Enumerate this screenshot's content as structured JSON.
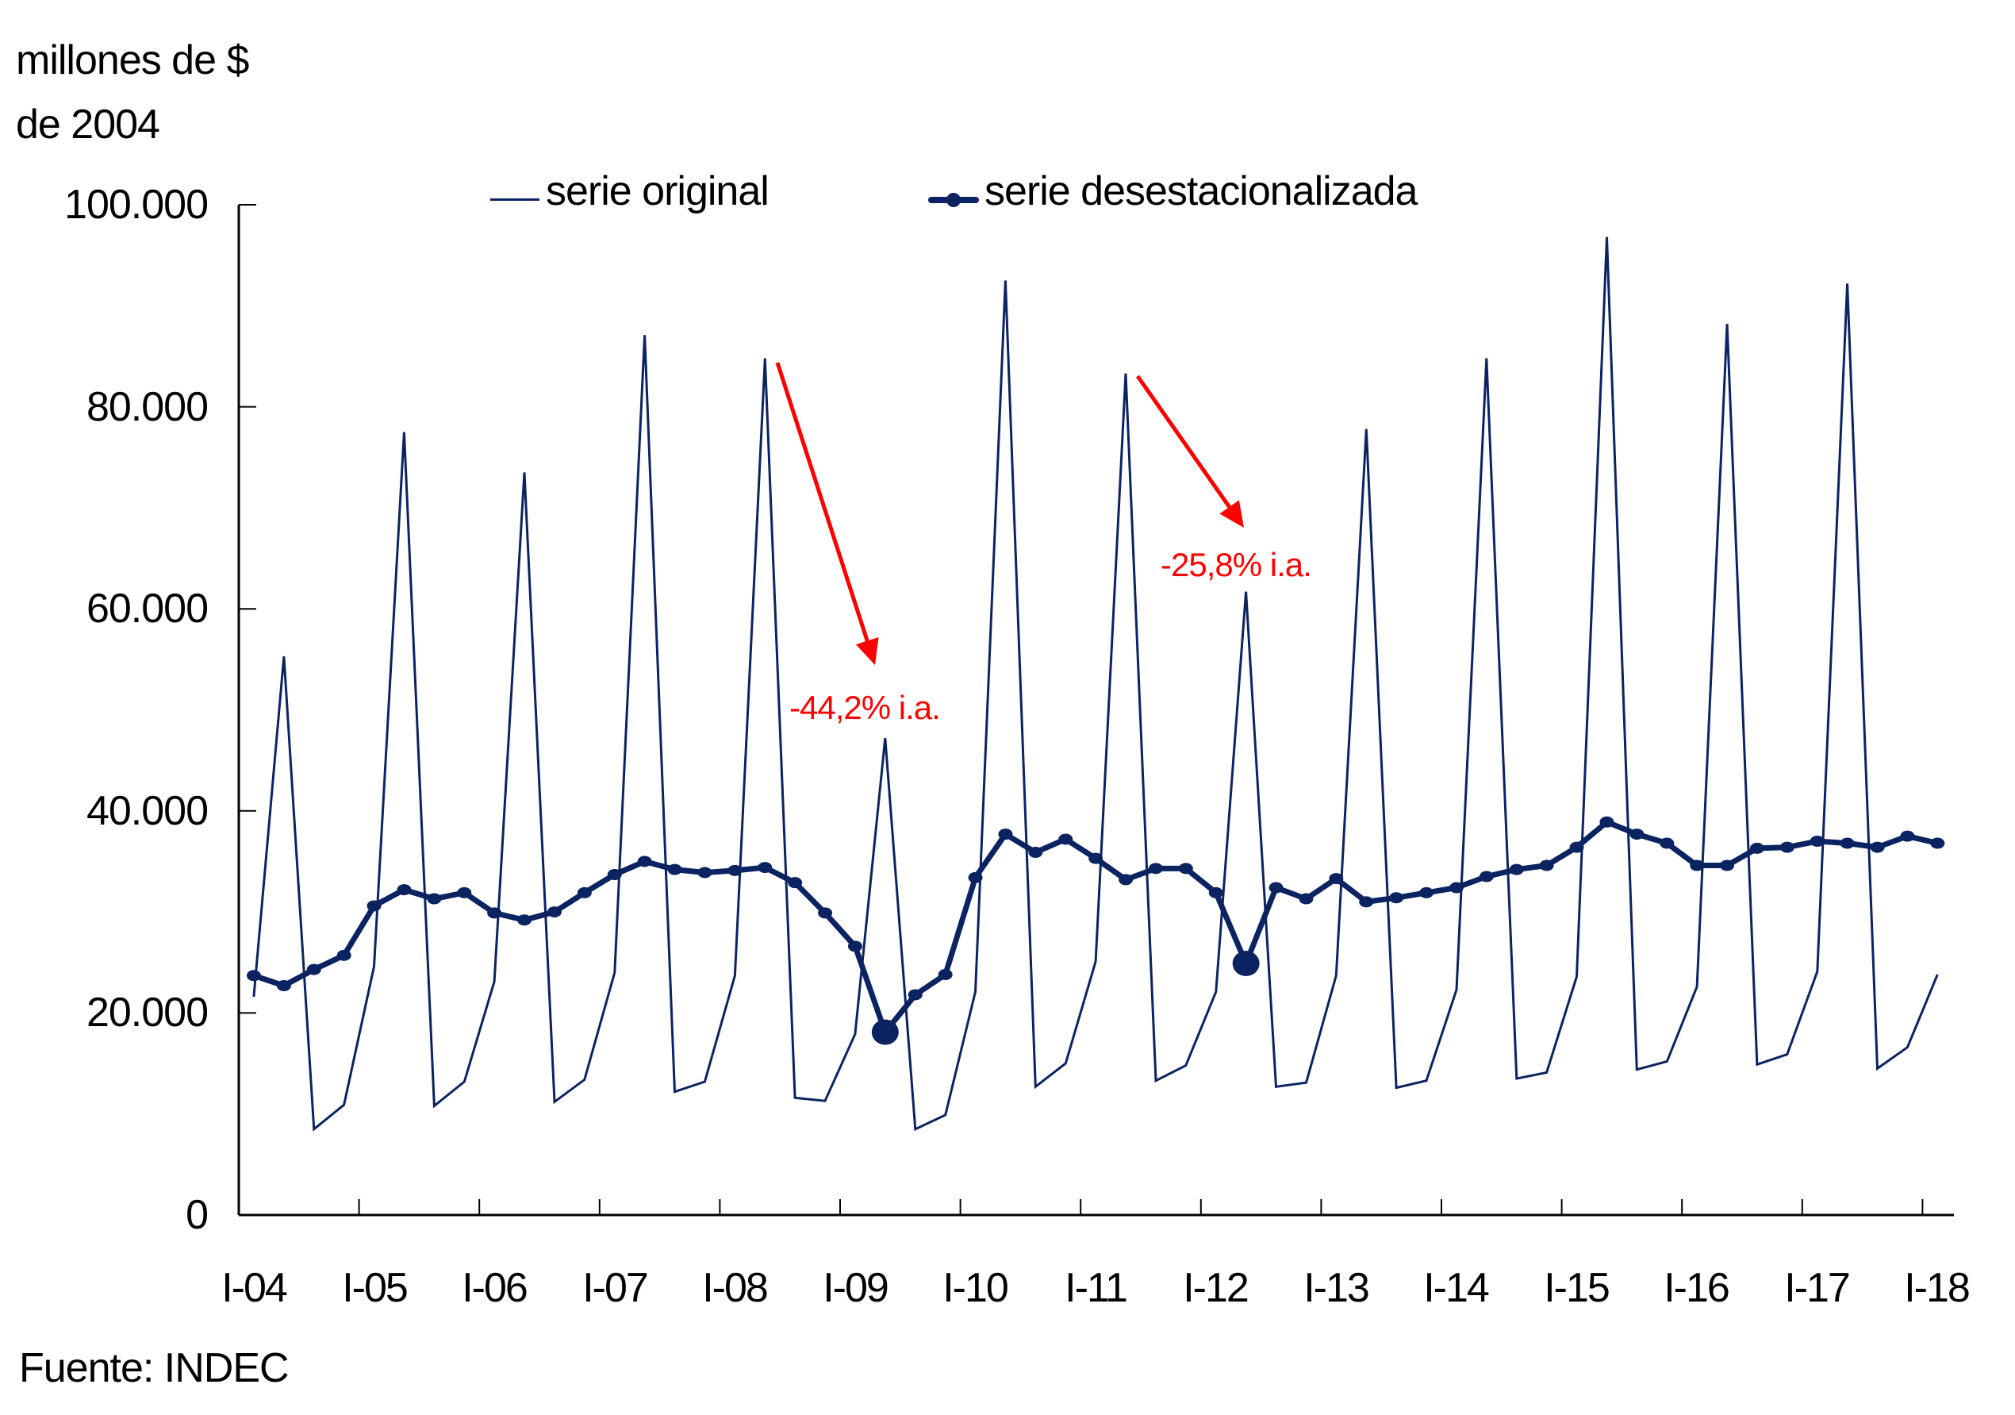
{
  "chart": {
    "ylabel_line1": "millones de $",
    "ylabel_line2": "de 2004",
    "source": "Fuente: INDEC",
    "legend": [
      {
        "label": "serie original",
        "style": "thin-line"
      },
      {
        "label": "serie desestacionalizada",
        "style": "thick-line-with-markers"
      }
    ],
    "y_ticks": [
      "100.000",
      "80.000",
      "60.000",
      "40.000",
      "20.000",
      "0"
    ],
    "x_ticks": [
      "I-04",
      "I-05",
      "I-06",
      "I-07",
      "I-08",
      "I-09",
      "I-10",
      "I-11",
      "I-12",
      "I-13",
      "I-14",
      "I-15",
      "I-16",
      "I-17",
      "I-18"
    ],
    "annotations": [
      {
        "text": "-44,2% i.a.",
        "target": "II-09"
      },
      {
        "text": "-25,8% i.a.",
        "target": "II-12"
      }
    ]
  },
  "colors": {
    "series_navy": "#0b2361",
    "annotation_red": "#ff0000",
    "axis": "#000000"
  },
  "chart_data": {
    "type": "line",
    "title": "",
    "xlabel": "",
    "ylabel": "millones de $ de 2004",
    "ylim": [
      0,
      100000
    ],
    "grid": false,
    "legend_position": "top",
    "x": [
      "I-04",
      "II-04",
      "III-04",
      "IV-04",
      "I-05",
      "II-05",
      "III-05",
      "IV-05",
      "I-06",
      "II-06",
      "III-06",
      "IV-06",
      "I-07",
      "II-07",
      "III-07",
      "IV-07",
      "I-08",
      "II-08",
      "III-08",
      "IV-08",
      "I-09",
      "II-09",
      "III-09",
      "IV-09",
      "I-10",
      "II-10",
      "III-10",
      "IV-10",
      "I-11",
      "II-11",
      "III-11",
      "IV-11",
      "I-12",
      "II-12",
      "III-12",
      "IV-12",
      "I-13",
      "II-13",
      "III-13",
      "IV-13",
      "I-14",
      "II-14",
      "III-14",
      "IV-14",
      "I-15",
      "II-15",
      "III-15",
      "IV-15",
      "I-16",
      "II-16",
      "III-16",
      "IV-16",
      "I-17",
      "II-17",
      "III-17",
      "IV-17",
      "I-18"
    ],
    "series": [
      {
        "name": "serie original",
        "values": [
          21600,
          55300,
          8500,
          10900,
          24600,
          77500,
          10800,
          13200,
          23100,
          73500,
          11200,
          13400,
          24000,
          87100,
          12200,
          13200,
          23700,
          84800,
          11600,
          11300,
          17900,
          47200,
          8500,
          9900,
          22100,
          92500,
          12700,
          15000,
          25100,
          83300,
          13300,
          14800,
          22100,
          61700,
          12700,
          13100,
          23700,
          77800,
          12600,
          13300,
          22300,
          84800,
          13500,
          14100,
          23600,
          96800,
          14400,
          15200,
          22600,
          88200,
          14900,
          15900,
          24100,
          92200,
          14500,
          16600,
          23800
        ]
      },
      {
        "name": "serie desestacionalizada",
        "values": [
          23700,
          22700,
          24300,
          25700,
          30600,
          32200,
          31300,
          31900,
          29900,
          29200,
          30000,
          31900,
          33700,
          35000,
          34200,
          33900,
          34100,
          34400,
          32900,
          29900,
          26600,
          18100,
          21800,
          23800,
          33400,
          37700,
          35900,
          37200,
          35300,
          33200,
          34300,
          34300,
          31900,
          24900,
          32400,
          31300,
          33300,
          31000,
          31400,
          31900,
          32400,
          33500,
          34200,
          34600,
          36400,
          38900,
          37700,
          36800,
          34600,
          34600,
          36300,
          36400,
          37000,
          36800,
          36400,
          37500,
          36800
        ],
        "highlighted_points": [
          "II-09",
          "II-12"
        ]
      }
    ],
    "annotations": [
      {
        "text": "-44,2% i.a.",
        "arrow_to": "II-09",
        "color": "#ff0000"
      },
      {
        "text": "-25,8% i.a.",
        "arrow_to": "II-12",
        "color": "#ff0000"
      }
    ],
    "x_tick_labels": [
      "I-04",
      "I-05",
      "I-06",
      "I-07",
      "I-08",
      "I-09",
      "I-10",
      "I-11",
      "I-12",
      "I-13",
      "I-14",
      "I-15",
      "I-16",
      "I-17",
      "I-18"
    ],
    "y_tick_labels": [
      "0",
      "20.000",
      "40.000",
      "60.000",
      "80.000",
      "100.000"
    ],
    "source": "Fuente: INDEC"
  }
}
